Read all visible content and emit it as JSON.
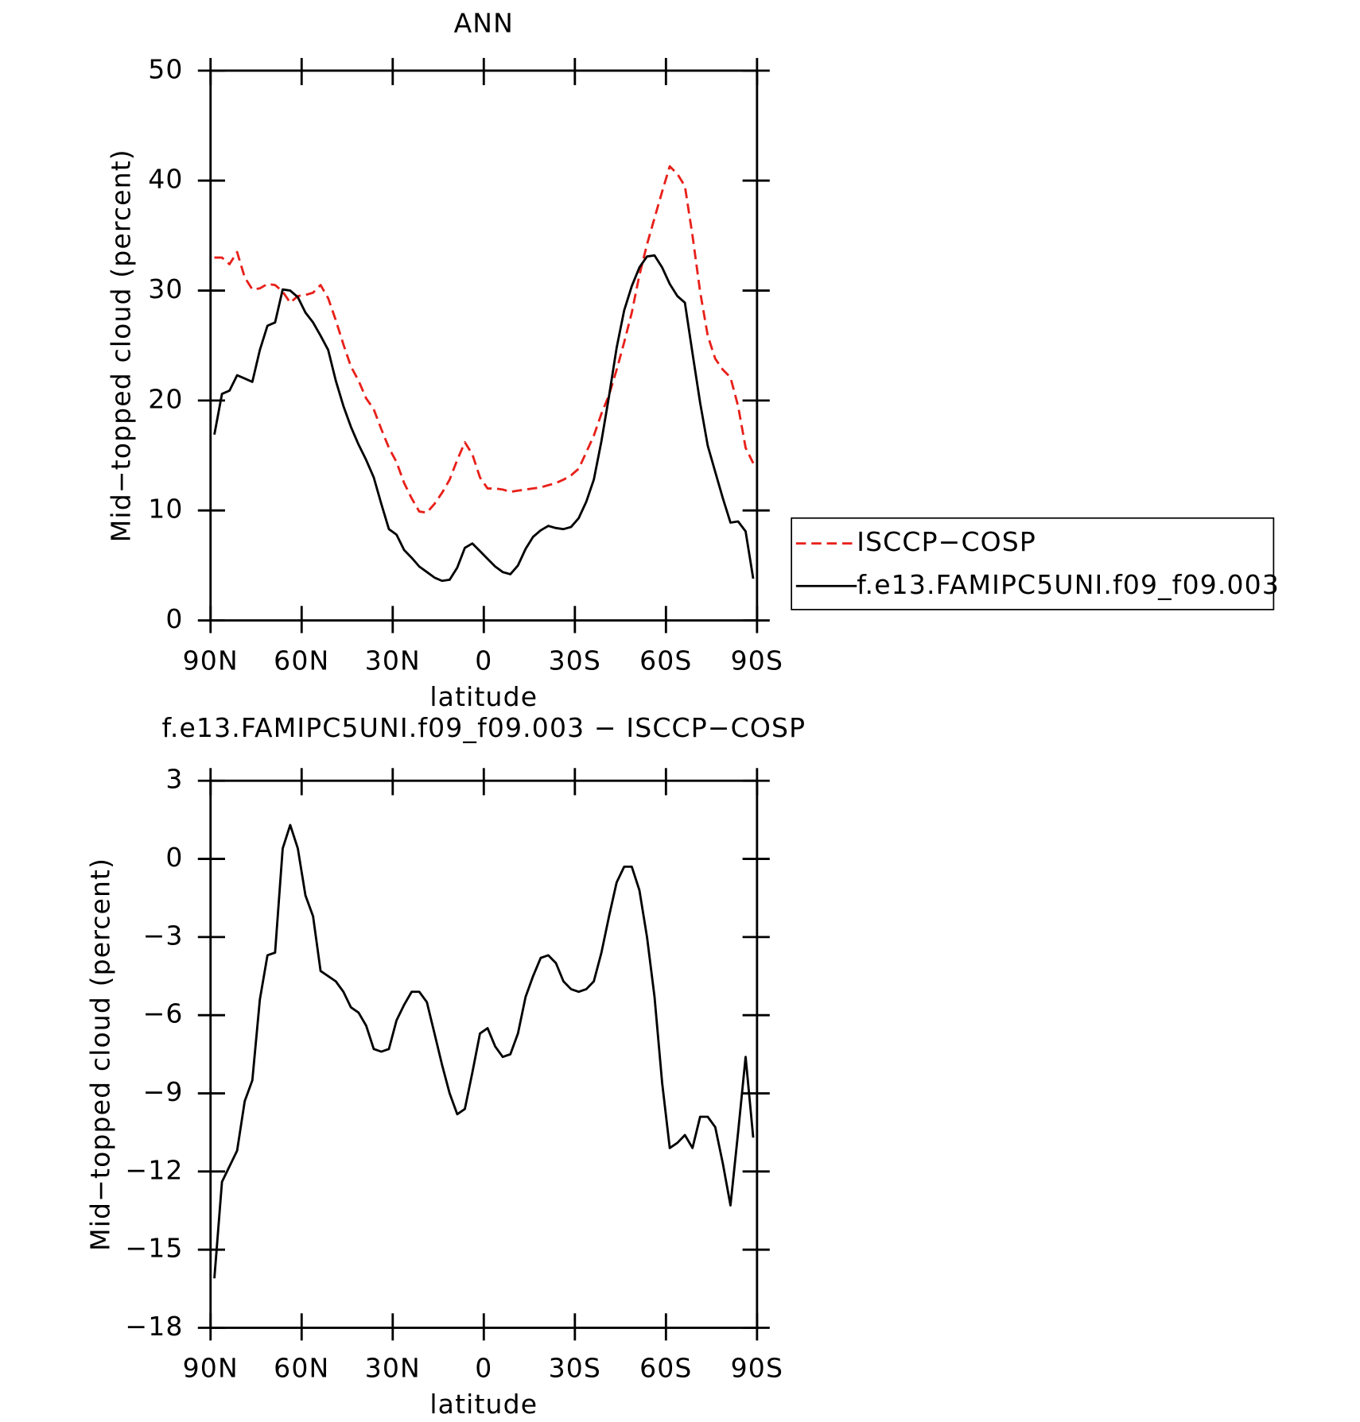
{
  "chart_data": [
    {
      "type": "line",
      "title": "ANN",
      "xlabel": "latitude",
      "ylabel": "Mid−topped cloud (percent)",
      "x": [
        88.75,
        86.25,
        83.75,
        81.25,
        78.75,
        76.25,
        73.75,
        71.25,
        68.75,
        66.25,
        63.75,
        61.25,
        58.75,
        56.25,
        53.75,
        51.25,
        48.75,
        46.25,
        43.75,
        41.25,
        38.75,
        36.25,
        33.75,
        31.25,
        28.75,
        26.25,
        23.75,
        21.25,
        18.75,
        16.25,
        13.75,
        11.25,
        8.75,
        6.25,
        3.75,
        1.25,
        -1.25,
        -3.75,
        -6.25,
        -8.75,
        -11.25,
        -13.75,
        -16.25,
        -18.75,
        -21.25,
        -23.75,
        -26.25,
        -28.75,
        -31.25,
        -33.75,
        -36.25,
        -38.75,
        -41.25,
        -43.75,
        -46.25,
        -48.75,
        -51.25,
        -53.75,
        -56.25,
        -58.75,
        -61.25,
        -63.75,
        -66.25,
        -68.75,
        -71.25,
        -73.75,
        -76.25,
        -78.75,
        -81.25,
        -83.75,
        -86.25,
        -88.75
      ],
      "xlim": [
        90,
        -90
      ],
      "xticks": [
        {
          "value": 90,
          "label": "90N"
        },
        {
          "value": 60,
          "label": "60N"
        },
        {
          "value": 30,
          "label": "30N"
        },
        0,
        {
          "value": -30,
          "label": "30S"
        },
        {
          "value": -60,
          "label": "60S"
        },
        {
          "value": -90,
          "label": "90S"
        }
      ],
      "ylim": [
        0,
        50
      ],
      "yticks": [
        0,
        10,
        20,
        30,
        40,
        50
      ],
      "legend": "outside-right",
      "series": [
        {
          "name": "ISCCP−COSP",
          "color": "#e8201a",
          "style": "dashed",
          "values": [
            33,
            33,
            32.4,
            33.5,
            31.2,
            30.1,
            30.2,
            30.6,
            30.5,
            29.9,
            28.9,
            29.5,
            29.6,
            29.8,
            30.5,
            29.3,
            27.3,
            25.1,
            23.1,
            21.8,
            20.2,
            19.2,
            17.4,
            15.7,
            14.4,
            12.5,
            11.1,
            9.9,
            9.8,
            10.6,
            11.6,
            12.8,
            14.6,
            16.2,
            15.1,
            13.0,
            12.0,
            12.0,
            11.9,
            11.7,
            11.8,
            11.9,
            12.0,
            12.1,
            12.3,
            12.5,
            12.8,
            13.2,
            13.8,
            15.3,
            16.8,
            18.8,
            20.5,
            22.8,
            25.3,
            28.0,
            31.4,
            34.2,
            36.6,
            39.0,
            41.3,
            40.6,
            39.5,
            35.0,
            29.9,
            25.9,
            23.8,
            22.8,
            22.1,
            19.5,
            15.7,
            14.3
          ]
        },
        {
          "name": "f.e13.FAMIPC5UNI.f09_f09.003",
          "color": "#000000",
          "style": "solid",
          "values": [
            16.9,
            20.6,
            20.9,
            22.3,
            22.0,
            21.7,
            24.6,
            26.8,
            27.1,
            30.1,
            30.0,
            29.4,
            28.0,
            27.1,
            25.9,
            24.6,
            21.8,
            19.5,
            17.6,
            16.0,
            14.6,
            13.0,
            10.6,
            8.3,
            7.8,
            6.4,
            5.7,
            4.9,
            4.4,
            3.9,
            3.6,
            3.7,
            4.8,
            6.6,
            7.0,
            6.3,
            5.6,
            4.9,
            4.4,
            4.2,
            5.0,
            6.5,
            7.6,
            8.2,
            8.6,
            8.4,
            8.3,
            8.5,
            9.3,
            10.8,
            12.8,
            16.3,
            20.4,
            24.8,
            28.2,
            30.4,
            32.1,
            33.1,
            33.2,
            32.1,
            30.6,
            29.5,
            28.9,
            24.3,
            19.8,
            15.9,
            13.5,
            11.1,
            8.9,
            9.0,
            8.1,
            3.8
          ]
        }
      ]
    },
    {
      "type": "line",
      "title": "f.e13.FAMIPC5UNI.f09_f09.003 − ISCCP−COSP",
      "xlabel": "latitude",
      "ylabel": "Mid−topped cloud (percent)",
      "x": [
        88.75,
        86.25,
        83.75,
        81.25,
        78.75,
        76.25,
        73.75,
        71.25,
        68.75,
        66.25,
        63.75,
        61.25,
        58.75,
        56.25,
        53.75,
        51.25,
        48.75,
        46.25,
        43.75,
        41.25,
        38.75,
        36.25,
        33.75,
        31.25,
        28.75,
        26.25,
        23.75,
        21.25,
        18.75,
        16.25,
        13.75,
        11.25,
        8.75,
        6.25,
        3.75,
        1.25,
        -1.25,
        -3.75,
        -6.25,
        -8.75,
        -11.25,
        -13.75,
        -16.25,
        -18.75,
        -21.25,
        -23.75,
        -26.25,
        -28.75,
        -31.25,
        -33.75,
        -36.25,
        -38.75,
        -41.25,
        -43.75,
        -46.25,
        -48.75,
        -51.25,
        -53.75,
        -56.25,
        -58.75,
        -61.25,
        -63.75,
        -66.25,
        -68.75,
        -71.25,
        -73.75,
        -76.25,
        -78.75,
        -81.25,
        -83.75,
        -86.25,
        -88.75
      ],
      "xlim": [
        90,
        -90
      ],
      "xticks": [
        {
          "value": 90,
          "label": "90N"
        },
        {
          "value": 60,
          "label": "60N"
        },
        {
          "value": 30,
          "label": "30N"
        },
        0,
        {
          "value": -30,
          "label": "30S"
        },
        {
          "value": -60,
          "label": "60S"
        },
        {
          "value": -90,
          "label": "90S"
        }
      ],
      "ylim": [
        -18,
        3
      ],
      "yticks": [
        {
          "value": -18,
          "label": "−18"
        },
        {
          "value": -15,
          "label": "−15"
        },
        {
          "value": -12,
          "label": "−12"
        },
        {
          "value": -9,
          "label": "−9"
        },
        {
          "value": -6,
          "label": "−6"
        },
        {
          "value": -3,
          "label": "−3"
        },
        0,
        3
      ],
      "series": [
        {
          "color": "#000000",
          "style": "solid",
          "values": [
            -16.1,
            -12.4,
            -11.8,
            -11.2,
            -9.3,
            -8.5,
            -5.4,
            -3.7,
            -3.6,
            0.4,
            1.3,
            0.4,
            -1.4,
            -2.2,
            -4.3,
            -4.5,
            -4.7,
            -5.1,
            -5.7,
            -5.9,
            -6.4,
            -7.3,
            -7.4,
            -7.3,
            -6.2,
            -5.6,
            -5.1,
            -5.1,
            -5.5,
            -6.7,
            -7.9,
            -9.0,
            -9.8,
            -9.6,
            -8.2,
            -6.7,
            -6.5,
            -7.2,
            -7.6,
            -7.5,
            -6.7,
            -5.3,
            -4.5,
            -3.8,
            -3.7,
            -4.0,
            -4.7,
            -5.0,
            -5.1,
            -5.0,
            -4.7,
            -3.6,
            -2.2,
            -0.9,
            -0.3,
            -0.3,
            -1.2,
            -3.0,
            -5.3,
            -8.6,
            -11.1,
            -10.9,
            -10.6,
            -11.1,
            -9.9,
            -9.9,
            -10.3,
            -11.7,
            -13.3,
            -10.5,
            -7.6,
            -10.7
          ]
        }
      ]
    }
  ]
}
